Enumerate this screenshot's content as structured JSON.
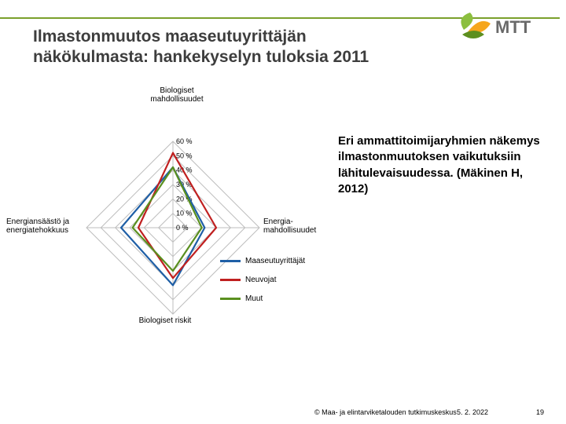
{
  "title_line1": "Ilmastonmuutos maaseutuyrittäjän",
  "title_line2": "näkökulmasta: hankekyselyn tuloksia 2011",
  "logo": {
    "text": "MTT",
    "text_color": "#6a6a6a",
    "leaf_color_1": "#8cbf3f",
    "leaf_color_2": "#f6a61c",
    "leaf_color_3": "#5d8f1f"
  },
  "radar": {
    "type": "radar",
    "axes": [
      "Biologiset mahdollisuudet",
      "Energia-mahdollisuudet",
      "Biologiset riskit",
      "Energiansäästö ja energiatehokkuus"
    ],
    "ticks": [
      "0 %",
      "10 %",
      "20 %",
      "30 %",
      "40 %",
      "50 %",
      "60 %"
    ],
    "tick_values": [
      0,
      10,
      20,
      30,
      40,
      50,
      60
    ],
    "max": 60,
    "grid_color": "#bdbdbd",
    "grid_width": 1,
    "series": [
      {
        "name": "Maaseutuyrittäjät",
        "color": "#1f5fa6",
        "values": [
          42,
          22,
          40,
          36
        ]
      },
      {
        "name": "Neuvojat",
        "color": "#c02020",
        "values": [
          52,
          30,
          35,
          24
        ]
      },
      {
        "name": "Muut",
        "color": "#5a8f1f",
        "values": [
          42,
          20,
          30,
          28
        ]
      }
    ],
    "line_width": 2.2,
    "background_color": "#ffffff",
    "label_fontsize": 10,
    "tick_fontsize": 9
  },
  "legend_items": [
    {
      "label": "Maaseutuyrittäjät",
      "color": "#1f5fa6"
    },
    {
      "label": "Neuvojat",
      "color": "#c02020"
    },
    {
      "label": "Muut",
      "color": "#5a8f1f"
    }
  ],
  "annotation": "Eri ammattitoimijaryhmien näkemys ilmastonmuutoksen vaikutuksiin lähitulevaisuudessa.       (Mäkinen H, 2012)",
  "footer": {
    "copyright": "© Maa- ja elintarviketalouden tutkimuskeskus",
    "date": "5. 2. 2022",
    "page": "19"
  }
}
